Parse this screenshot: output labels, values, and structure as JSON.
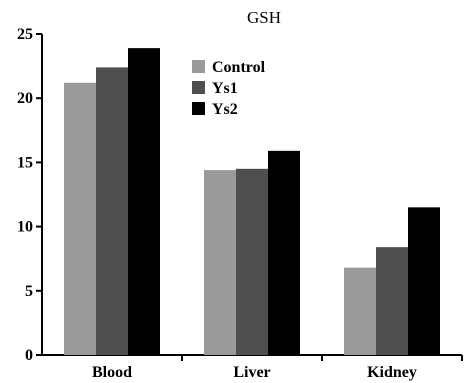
{
  "chart_data": {
    "type": "bar",
    "title": "GSH",
    "xlabel": "",
    "ylabel": "",
    "categories": [
      "Blood",
      "Liver",
      "Kidney"
    ],
    "series": [
      {
        "name": "Control",
        "color": "#9a9a9a",
        "values": [
          21.2,
          14.4,
          6.8
        ]
      },
      {
        "name": "Ys1",
        "color": "#4f4f4f",
        "values": [
          22.4,
          14.5,
          8.4
        ]
      },
      {
        "name": "Ys2",
        "color": "#000000",
        "values": [
          23.9,
          15.9,
          11.5
        ]
      }
    ],
    "ylim": [
      0,
      25
    ],
    "yticks": [
      0,
      5,
      10,
      15,
      20,
      25
    ],
    "grid": false,
    "legend": "top-center"
  }
}
